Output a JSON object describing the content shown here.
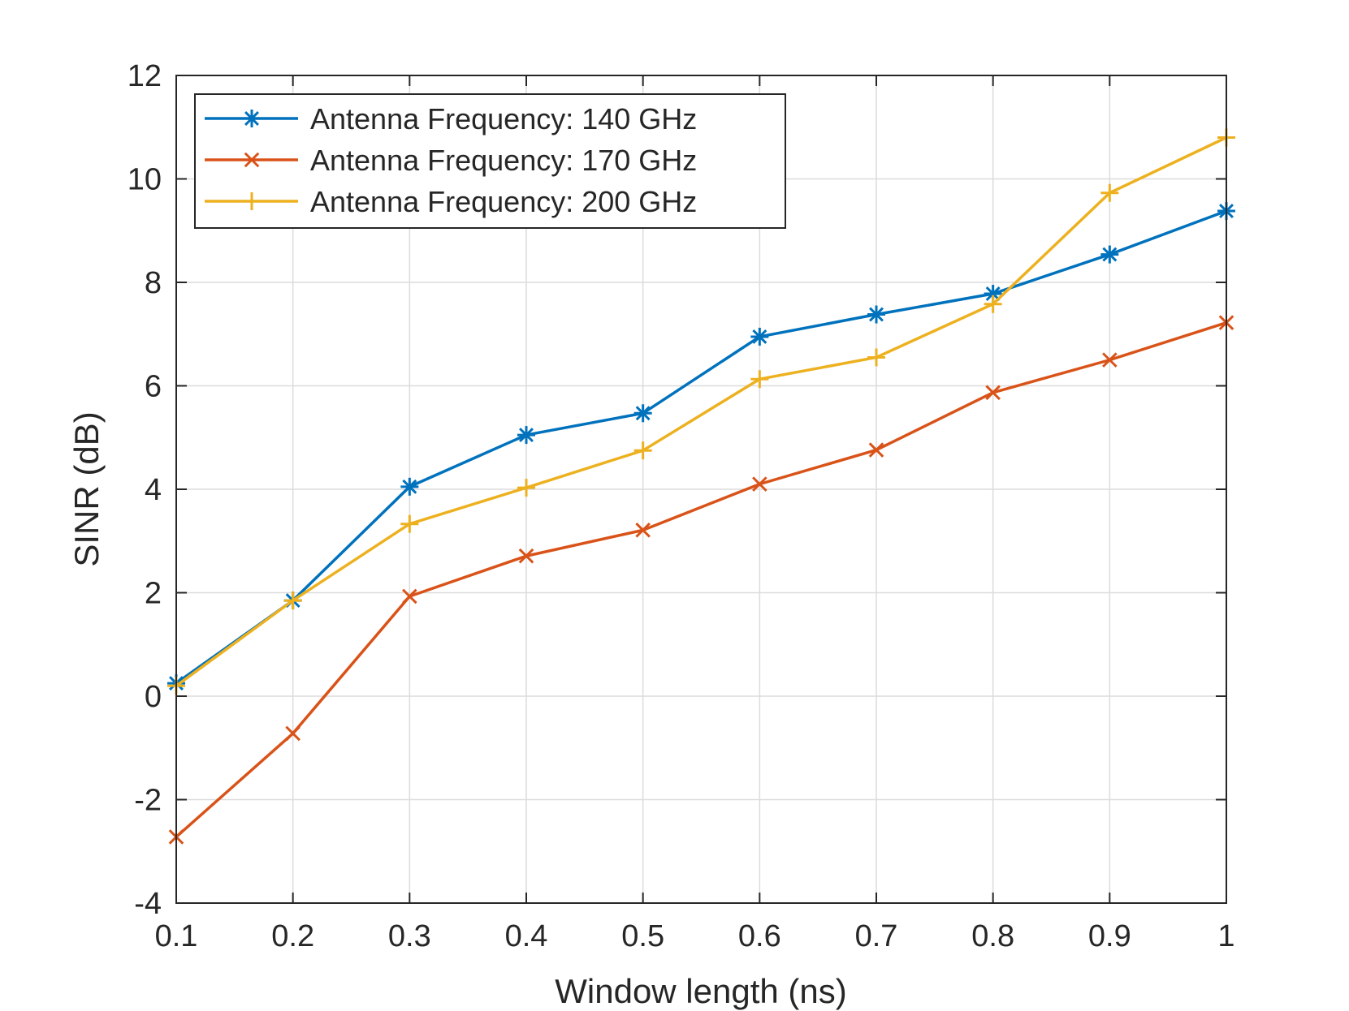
{
  "chart_data": {
    "type": "line",
    "title": "",
    "xlabel": "Window length (ns)",
    "ylabel": "SINR (dB)",
    "x": [
      0.1,
      0.2,
      0.3,
      0.4,
      0.5,
      0.6,
      0.7,
      0.8,
      0.9,
      1.0
    ],
    "xlim": [
      0.1,
      1.0
    ],
    "ylim": [
      -4,
      12
    ],
    "xticks": [
      0.1,
      0.2,
      0.3,
      0.4,
      0.5,
      0.6,
      0.7,
      0.8,
      0.9,
      1.0
    ],
    "xtick_labels": [
      "0.1",
      "0.2",
      "0.3",
      "0.4",
      "0.5",
      "0.6",
      "0.7",
      "0.8",
      "0.9",
      "1"
    ],
    "yticks": [
      -4,
      -2,
      0,
      2,
      4,
      6,
      8,
      10,
      12
    ],
    "ytick_labels": [
      "-4",
      "-2",
      "0",
      "2",
      "4",
      "6",
      "8",
      "10",
      "12"
    ],
    "grid": true,
    "legend_position": "top-left",
    "series": [
      {
        "name": "Antenna Frequency: 140 GHz",
        "color": "#0072BD",
        "marker": "asterisk",
        "values": [
          0.25,
          1.85,
          4.05,
          5.05,
          5.47,
          6.95,
          7.38,
          7.78,
          8.54,
          9.38
        ]
      },
      {
        "name": "Antenna Frequency: 170 GHz",
        "color": "#D95319",
        "marker": "x",
        "values": [
          -2.72,
          -0.72,
          1.93,
          2.71,
          3.21,
          4.1,
          4.76,
          5.87,
          6.5,
          7.22
        ]
      },
      {
        "name": "Antenna Frequency: 200 GHz",
        "color": "#EDB120",
        "marker": "plus",
        "values": [
          0.2,
          1.85,
          3.33,
          4.03,
          4.75,
          6.13,
          6.55,
          7.58,
          9.73,
          10.8
        ]
      }
    ]
  }
}
